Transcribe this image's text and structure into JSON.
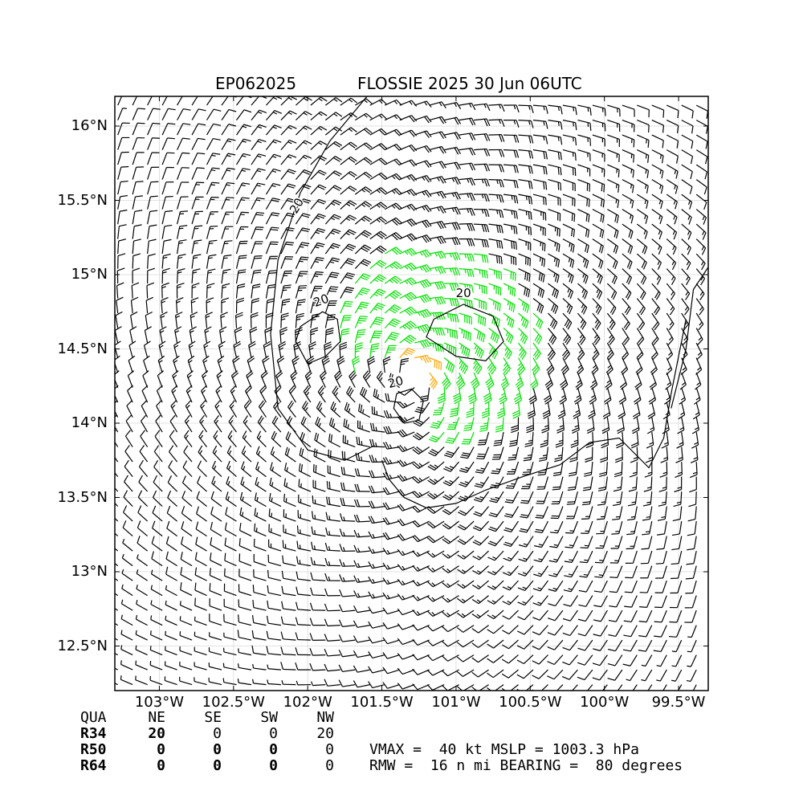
{
  "chart_data": {
    "type": "wind-barb-map",
    "title_left": "EP062025",
    "title_right": "FLOSSIE 2025 30 Jun 06UTC",
    "lon_range": [
      -103.3,
      -99.3
    ],
    "lat_range": [
      12.2,
      16.2
    ],
    "lat_ticks": [
      "16°N",
      "15.5°N",
      "15°N",
      "14.5°N",
      "14°N",
      "13.5°N",
      "13°N",
      "12.5°N"
    ],
    "lat_tick_values": [
      16,
      15.5,
      15,
      14.5,
      14,
      13.5,
      13,
      12.5
    ],
    "lon_ticks": [
      "103°W",
      "102.5°W",
      "102°W",
      "101.5°W",
      "101°W",
      "100.5°W",
      "100°W",
      "99.5°W"
    ],
    "lon_tick_values": [
      -103,
      -102.5,
      -102,
      -101.5,
      -101,
      -100.5,
      -100,
      -99.5
    ],
    "center": {
      "lon": -101.3,
      "lat": 14.3
    },
    "contour_label": "20",
    "colors": {
      "ge34kt": "#00e000",
      "lt34kt": "#000000",
      "ge50kt": "#ffa500",
      "coast": "#000000"
    },
    "wind_radii": {
      "header": [
        "QUA",
        "NE",
        "SE",
        "SW",
        "NW"
      ],
      "rows": [
        {
          "label": "R34",
          "values": [
            "20",
            "0",
            "0",
            "20"
          ]
        },
        {
          "label": "R50",
          "values": [
            "0",
            "0",
            "0",
            "0"
          ]
        },
        {
          "label": "R64",
          "values": [
            "0",
            "0",
            "0",
            "0"
          ]
        }
      ]
    },
    "summary": {
      "line1": "VMAX =  40 kt MSLP = 1003.3 hPa",
      "line2": "RMW =  16 n mi BEARING =  80 degrees"
    }
  }
}
